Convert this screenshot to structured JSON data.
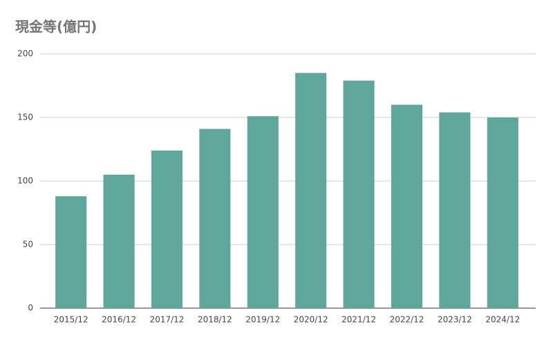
{
  "chart_data": {
    "type": "bar",
    "title": "現金等(億円)",
    "categories": [
      "2015/12",
      "2016/12",
      "2017/12",
      "2018/12",
      "2019/12",
      "2020/12",
      "2021/12",
      "2022/12",
      "2023/12",
      "2024/12"
    ],
    "values": [
      88,
      105,
      124,
      141,
      151,
      185,
      179,
      160,
      154,
      150
    ],
    "color": "#5fa69b",
    "ylim": [
      0,
      200
    ],
    "yticks": [
      0,
      50,
      100,
      150,
      200
    ],
    "grid": true
  }
}
